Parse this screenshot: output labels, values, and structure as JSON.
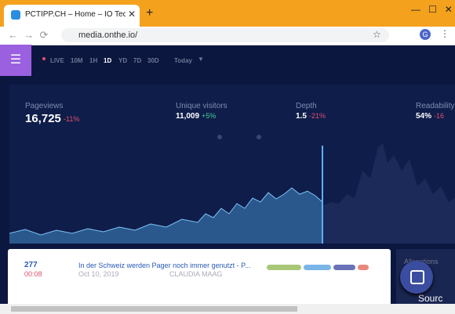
{
  "browser": {
    "tab_title": "PCTIPP.CH – Home – IO Technolo",
    "url": "media.onthe.io/",
    "profile_initial": "G"
  },
  "nav": {
    "items": [
      "LIVE",
      "10M",
      "1H",
      "1D",
      "YD",
      "7D",
      "30D"
    ],
    "period": "Today"
  },
  "stats": [
    {
      "label": "Pageviews",
      "value": "16,725",
      "change": "-11%"
    },
    {
      "label": "Unique visitors",
      "value": "11,009",
      "change": "+5%"
    },
    {
      "label": "Depth",
      "value": "1.5",
      "change": "-21%"
    },
    {
      "label": "Readability",
      "value": "54%",
      "change": "-16"
    }
  ],
  "articles": [
    {
      "views": "277",
      "time": "00:08",
      "title": "In der Schweiz werden Pager noch immer genutzt - P...",
      "date": "Oct 10, 2019",
      "author": "CLAUDIA MAAG"
    }
  ],
  "side": {
    "heading": "Allocations",
    "sources": "Sourc"
  }
}
